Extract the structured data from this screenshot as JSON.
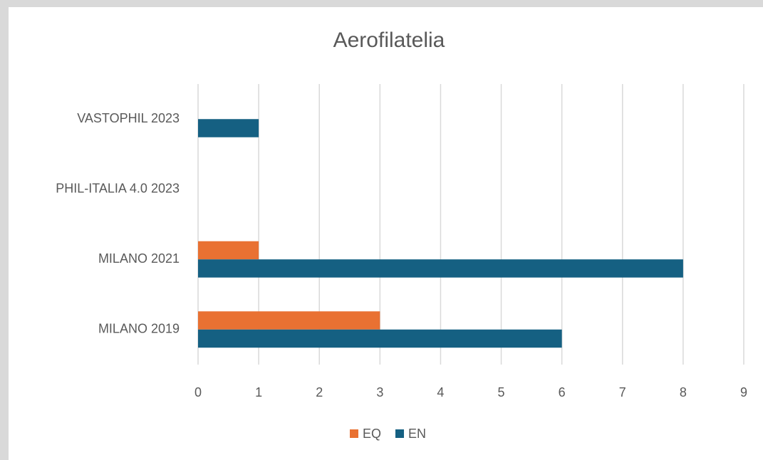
{
  "chart_data": {
    "type": "bar",
    "orientation": "horizontal",
    "title": "Aerofilatelia",
    "categories": [
      "MILANO 2019",
      "MILANO 2021",
      "PHIL-ITALIA 4.0 2023",
      "VASTOPHIL 2023"
    ],
    "series": [
      {
        "name": "EQ",
        "color": "#e97132",
        "values": [
          3,
          1,
          0,
          0
        ]
      },
      {
        "name": "EN",
        "color": "#156082",
        "values": [
          6,
          8,
          0,
          1
        ]
      }
    ],
    "xlim": [
      0,
      9
    ],
    "xticks": [
      0,
      1,
      2,
      3,
      4,
      5,
      6,
      7,
      8,
      9
    ],
    "grid": true,
    "legend": "bottom"
  }
}
